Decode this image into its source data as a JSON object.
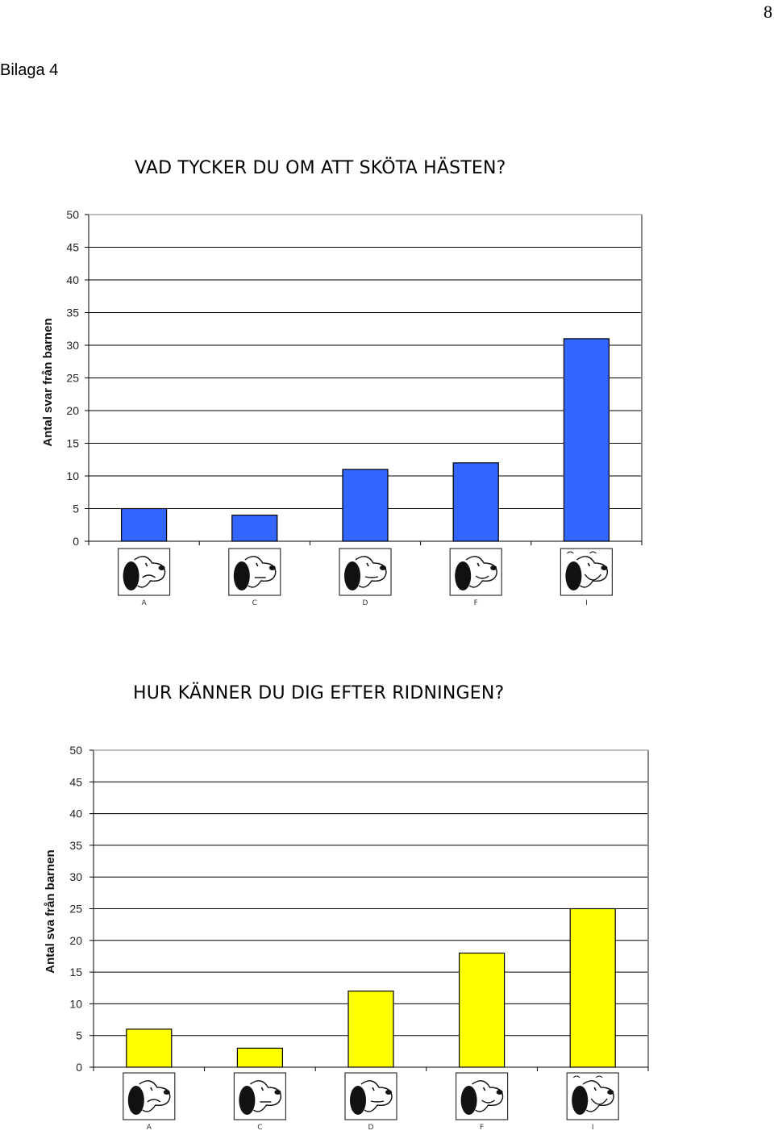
{
  "page_number": "8",
  "appendix_label": "Bilaga 4",
  "chart_data": [
    {
      "type": "bar",
      "title": "VAD TYCKER DU OM ATT SKÖTA HÄSTEN?",
      "ylabel": "Antal svar från barnen",
      "xlabel": "",
      "categories": [
        "A",
        "C",
        "D",
        "F",
        "I"
      ],
      "values": [
        5,
        4,
        11,
        12,
        31
      ],
      "ylim": [
        0,
        50
      ],
      "yticks": [
        0,
        5,
        10,
        15,
        20,
        25,
        30,
        35,
        40,
        45,
        50
      ],
      "bar_color": "#3366ff",
      "grid": true,
      "category_icons": [
        "sad-dog-face-icon",
        "worried-dog-face-icon",
        "neutral-dog-face-icon",
        "content-dog-face-icon",
        "happy-dog-face-icon"
      ]
    },
    {
      "type": "bar",
      "title": "HUR KÄNNER DU DIG EFTER RIDNINGEN?",
      "ylabel": "Antal sva från barnen",
      "xlabel": "",
      "categories": [
        "A",
        "C",
        "D",
        "F",
        "I"
      ],
      "values": [
        6,
        3,
        12,
        18,
        25
      ],
      "ylim": [
        0,
        50
      ],
      "yticks": [
        0,
        5,
        10,
        15,
        20,
        25,
        30,
        35,
        40,
        45,
        50
      ],
      "bar_color": "#ffff00",
      "grid": true,
      "category_icons": [
        "sad-dog-face-icon",
        "worried-dog-face-icon",
        "neutral-dog-face-icon",
        "content-dog-face-icon",
        "happy-dog-face-icon"
      ]
    }
  ]
}
